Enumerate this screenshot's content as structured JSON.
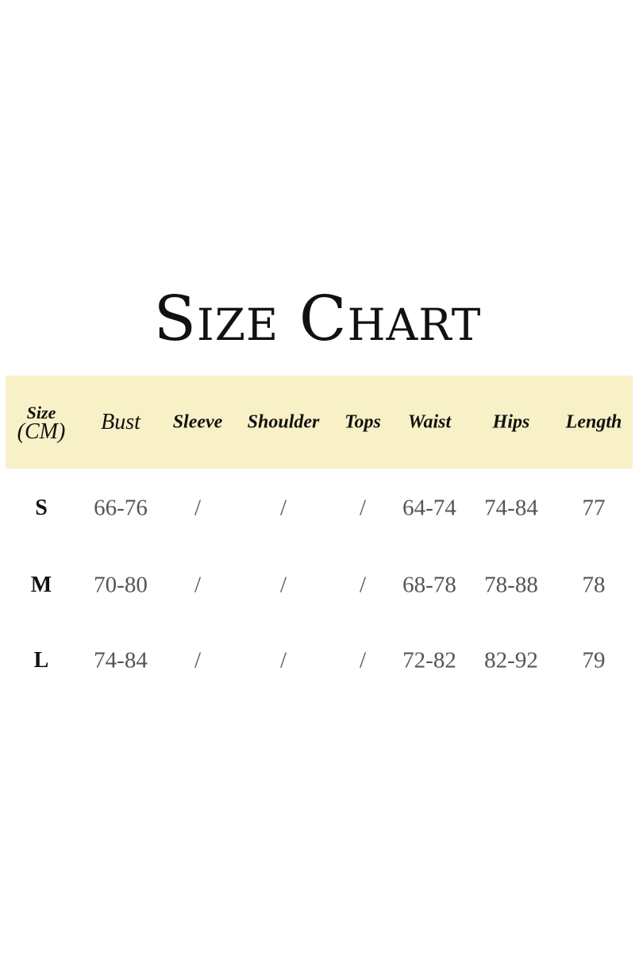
{
  "title": "Size Chart",
  "colors": {
    "header_background": "#f8f0c6",
    "value_text": "#555555"
  },
  "table": {
    "size_header": {
      "line1": "Size",
      "line2": "(CM)"
    },
    "headers": [
      "Bust",
      "Sleeve",
      "Shoulder",
      "Tops",
      "Waist",
      "Hips",
      "Length"
    ],
    "rows": [
      {
        "size": "S",
        "values": [
          "66-76",
          "/",
          "/",
          "/",
          "64-74",
          "74-84",
          "77"
        ]
      },
      {
        "size": "M",
        "values": [
          "70-80",
          "/",
          "/",
          "/",
          "68-78",
          "78-88",
          "78"
        ]
      },
      {
        "size": "L",
        "values": [
          "74-84",
          "/",
          "/",
          "/",
          "72-82",
          "82-92",
          "79"
        ]
      }
    ]
  }
}
